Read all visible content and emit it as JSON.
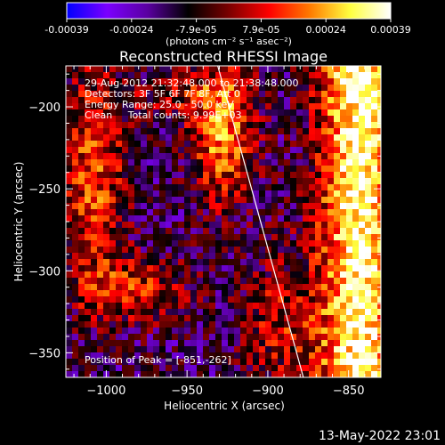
{
  "colorbar": {
    "tick_labels": [
      "-0.00039",
      "-0.00024",
      "-7.9e-05",
      "7.9e-05",
      "0.00024",
      "0.00039"
    ],
    "unit_label": "(photons cm⁻² s⁻¹ asec⁻²)",
    "range": [
      -0.00039,
      0.00039
    ],
    "colors": [
      "#0000ff",
      "#7b00ff",
      "#5a00a0",
      "#000000",
      "#7a0000",
      "#ff0000",
      "#ff7a00",
      "#ffff40",
      "#ffffff"
    ]
  },
  "chart_data": {
    "type": "heatmap",
    "title": "Reconstructed RHESSI Image",
    "xlabel": "Heliocentric X (arcsec)",
    "ylabel": "Heliocentric Y (arcsec)",
    "xlim": [
      -1025,
      -830
    ],
    "ylim": [
      -365,
      -175
    ],
    "x_ticks": [
      -1000,
      -950,
      -900,
      -850
    ],
    "x_tick_labels": [
      "−1000",
      "−950",
      "−900",
      "−850"
    ],
    "y_ticks": [
      -200,
      -250,
      -300,
      -350
    ],
    "y_tick_labels": [
      "−200",
      "−250",
      "−300",
      "−350"
    ],
    "limb_line": {
      "x": [
        -931,
        -878
      ],
      "y": [
        -175,
        -365
      ]
    },
    "peak": {
      "x": -851,
      "y": -262
    },
    "annotations": [
      "29-Aug-2012 21:32:48.000 to 21:38:48.000",
      "Detectors: 3F 5F 6F 7F 8F, Att 0",
      "Energy Range: 25.0 - 50.0 keV",
      "Clean     Total counts: 9.99E+03"
    ],
    "peak_label": "Position of Peak = [-851,-262]"
  },
  "footer": {
    "timestamp": "13-May-2022 23:01"
  }
}
